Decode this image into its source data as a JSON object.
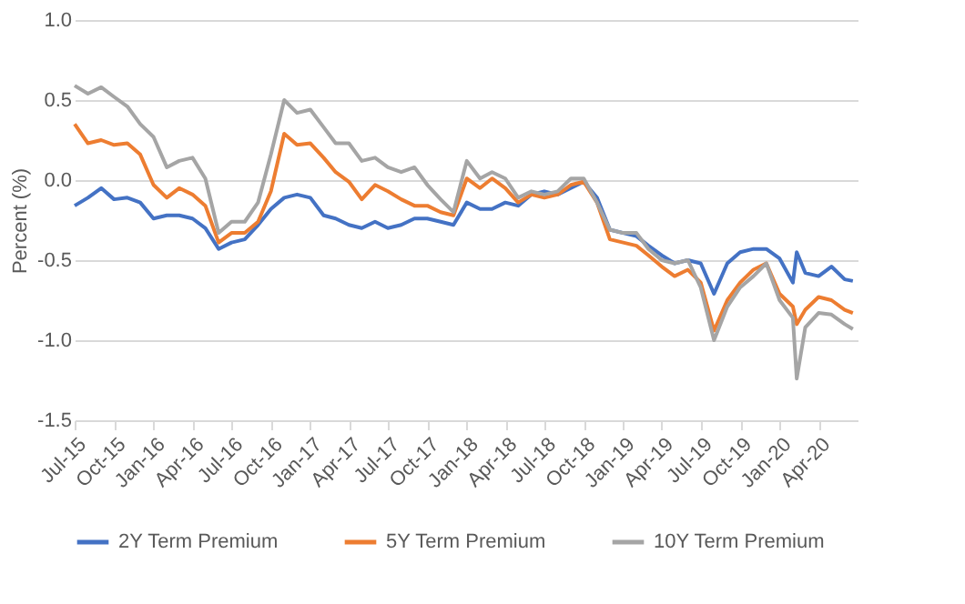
{
  "chart_data": {
    "type": "line",
    "ylabel": "Percent (%)",
    "x": [
      "2015-07-01",
      "2015-08-01",
      "2015-09-01",
      "2015-10-01",
      "2015-11-01",
      "2015-12-01",
      "2016-01-01",
      "2016-02-01",
      "2016-03-01",
      "2016-04-01",
      "2016-05-01",
      "2016-06-01",
      "2016-07-01",
      "2016-08-01",
      "2016-09-01",
      "2016-10-01",
      "2016-11-01",
      "2016-12-01",
      "2017-01-01",
      "2017-02-01",
      "2017-03-01",
      "2017-04-01",
      "2017-05-01",
      "2017-06-01",
      "2017-07-01",
      "2017-08-01",
      "2017-09-01",
      "2017-10-01",
      "2017-11-01",
      "2017-12-01",
      "2018-01-01",
      "2018-02-01",
      "2018-03-01",
      "2018-04-01",
      "2018-05-01",
      "2018-06-01",
      "2018-07-01",
      "2018-08-01",
      "2018-09-01",
      "2018-10-01",
      "2018-11-01",
      "2018-12-01",
      "2019-01-01",
      "2019-02-01",
      "2019-03-01",
      "2019-04-01",
      "2019-05-01",
      "2019-06-01",
      "2019-07-01",
      "2019-08-01",
      "2019-09-01",
      "2019-10-01",
      "2019-11-01",
      "2019-12-01",
      "2020-01-01",
      "2020-02-01",
      "2020-02-10",
      "2020-03-01",
      "2020-04-01",
      "2020-05-01",
      "2020-06-01",
      "2020-06-20"
    ],
    "series": [
      {
        "name": "2Y Term Premium",
        "color": "#4472c4",
        "values": [
          -0.16,
          -0.11,
          -0.05,
          -0.12,
          -0.11,
          -0.14,
          -0.24,
          -0.22,
          -0.22,
          -0.24,
          -0.3,
          -0.43,
          -0.39,
          -0.37,
          -0.28,
          -0.18,
          -0.11,
          -0.09,
          -0.11,
          -0.22,
          -0.24,
          -0.28,
          -0.3,
          -0.26,
          -0.3,
          -0.28,
          -0.24,
          -0.24,
          -0.26,
          -0.28,
          -0.14,
          -0.18,
          -0.18,
          -0.14,
          -0.16,
          -0.09,
          -0.07,
          -0.09,
          -0.05,
          -0.01,
          -0.11,
          -0.31,
          -0.33,
          -0.35,
          -0.41,
          -0.47,
          -0.52,
          -0.5,
          -0.52,
          -0.71,
          -0.52,
          -0.45,
          -0.43,
          -0.43,
          -0.49,
          -0.64,
          -0.45,
          -0.58,
          -0.6,
          -0.54,
          -0.62,
          -0.63
        ]
      },
      {
        "name": "5Y Term Premium",
        "color": "#ed7d31",
        "values": [
          0.35,
          0.23,
          0.25,
          0.22,
          0.23,
          0.16,
          -0.03,
          -0.11,
          -0.05,
          -0.09,
          -0.16,
          -0.39,
          -0.33,
          -0.33,
          -0.26,
          -0.07,
          0.29,
          0.22,
          0.23,
          0.14,
          0.05,
          -0.01,
          -0.12,
          -0.03,
          -0.07,
          -0.12,
          -0.16,
          -0.16,
          -0.2,
          -0.22,
          0.01,
          -0.05,
          0.01,
          -0.05,
          -0.14,
          -0.09,
          -0.11,
          -0.09,
          -0.03,
          -0.01,
          -0.14,
          -0.37,
          -0.39,
          -0.41,
          -0.47,
          -0.54,
          -0.6,
          -0.56,
          -0.64,
          -0.94,
          -0.75,
          -0.64,
          -0.56,
          -0.52,
          -0.71,
          -0.79,
          -0.9,
          -0.81,
          -0.73,
          -0.75,
          -0.81,
          -0.83
        ]
      },
      {
        "name": "10Y Term Premium",
        "color": "#a5a5a5",
        "values": [
          0.59,
          0.54,
          0.58,
          0.52,
          0.46,
          0.35,
          0.27,
          0.08,
          0.12,
          0.14,
          0.01,
          -0.33,
          -0.26,
          -0.26,
          -0.14,
          0.16,
          0.5,
          0.42,
          0.44,
          0.33,
          0.23,
          0.23,
          0.12,
          0.14,
          0.08,
          0.05,
          0.08,
          -0.03,
          -0.12,
          -0.2,
          0.12,
          0.01,
          0.05,
          0.01,
          -0.11,
          -0.07,
          -0.09,
          -0.07,
          0.01,
          0.01,
          -0.14,
          -0.31,
          -0.33,
          -0.33,
          -0.43,
          -0.5,
          -0.52,
          -0.5,
          -0.67,
          -1.0,
          -0.79,
          -0.67,
          -0.6,
          -0.52,
          -0.75,
          -0.86,
          -1.24,
          -0.92,
          -0.83,
          -0.84,
          -0.9,
          -0.93
        ]
      }
    ],
    "xlim": [
      "2015-07-01",
      "2020-07-01"
    ],
    "xticks": [
      {
        "value": "2015-07-01",
        "label": "Jul-15"
      },
      {
        "value": "2015-10-01",
        "label": "Oct-15"
      },
      {
        "value": "2016-01-01",
        "label": "Jan-16"
      },
      {
        "value": "2016-04-01",
        "label": "Apr-16"
      },
      {
        "value": "2016-07-01",
        "label": "Jul-16"
      },
      {
        "value": "2016-10-01",
        "label": "Oct-16"
      },
      {
        "value": "2017-01-01",
        "label": "Jan-17"
      },
      {
        "value": "2017-04-01",
        "label": "Apr-17"
      },
      {
        "value": "2017-07-01",
        "label": "Jul-17"
      },
      {
        "value": "2017-10-01",
        "label": "Oct-17"
      },
      {
        "value": "2018-01-01",
        "label": "Jan-18"
      },
      {
        "value": "2018-04-01",
        "label": "Apr-18"
      },
      {
        "value": "2018-07-01",
        "label": "Jul-18"
      },
      {
        "value": "2018-10-01",
        "label": "Oct-18"
      },
      {
        "value": "2019-01-01",
        "label": "Jan-19"
      },
      {
        "value": "2019-04-01",
        "label": "Apr-19"
      },
      {
        "value": "2019-07-01",
        "label": "Jul-19"
      },
      {
        "value": "2019-10-01",
        "label": "Oct-19"
      },
      {
        "value": "2020-01-01",
        "label": "Jan-20"
      },
      {
        "value": "2020-04-01",
        "label": "Apr-20"
      }
    ],
    "ylim": [
      -1.5,
      1.0
    ],
    "yticks": [
      {
        "value": -1.5,
        "label": "-1.5"
      },
      {
        "value": -1.0,
        "label": "-1.0"
      },
      {
        "value": -0.5,
        "label": "-0.5"
      },
      {
        "value": 0,
        "label": "0.0"
      },
      {
        "value": 0.5,
        "label": "0.5"
      },
      {
        "value": 1.0,
        "label": "1.0"
      }
    ],
    "grid": "y",
    "legend": "bottom",
    "marker": "none",
    "line_style": "solid"
  }
}
